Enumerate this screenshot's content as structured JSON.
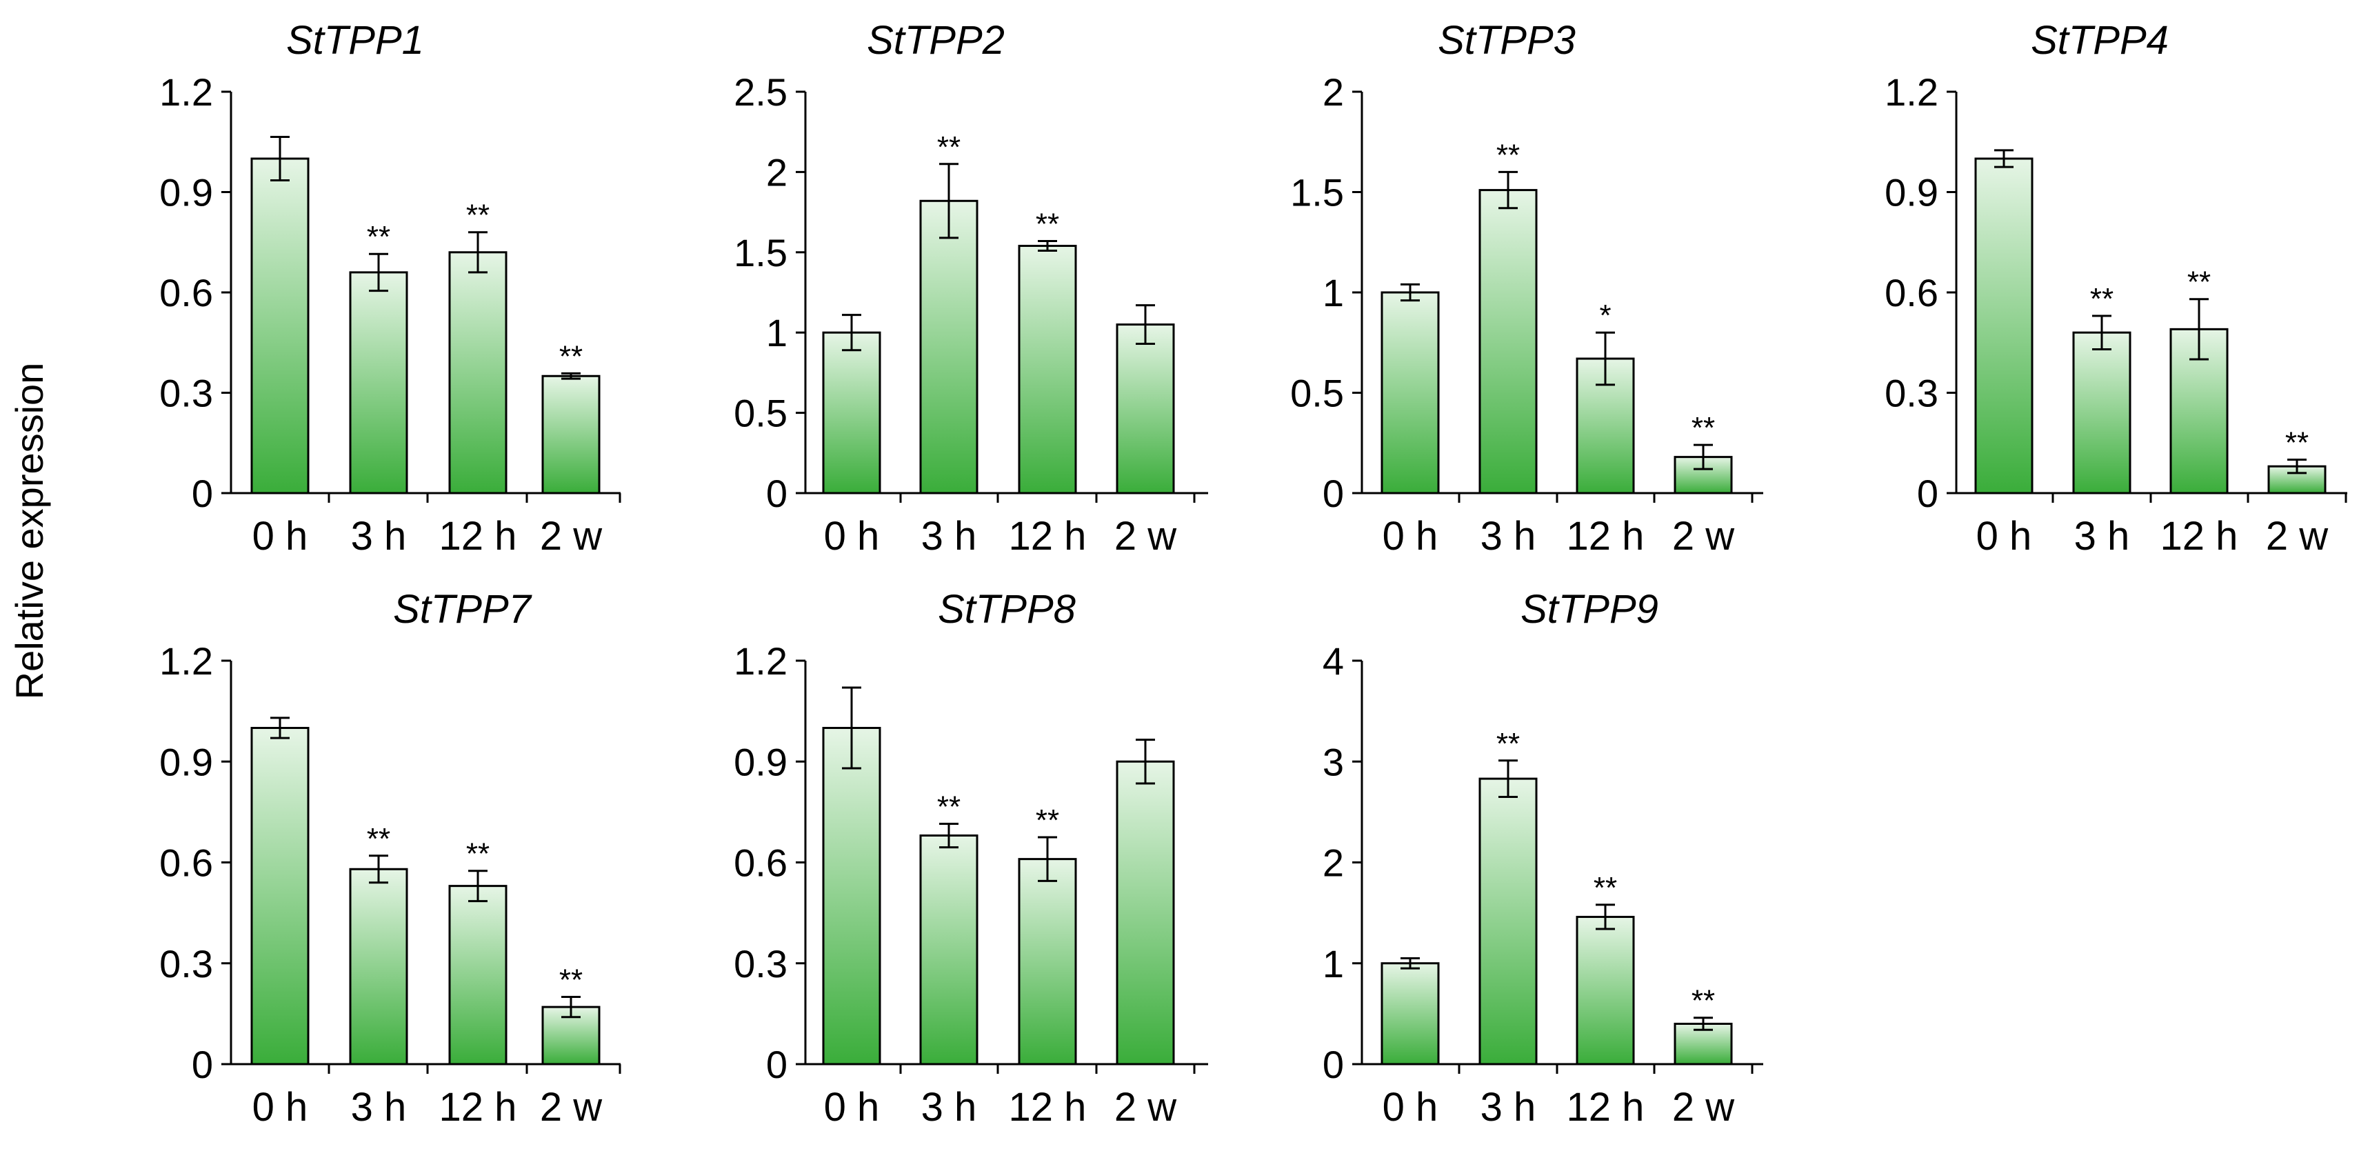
{
  "figure": {
    "ylabel": "Relative expression",
    "bar_gradient": [
      "#e6f5e6",
      "#3aad3a"
    ],
    "axis_color": "#000000"
  },
  "chart_data": [
    {
      "type": "bar",
      "title": "StTPP1",
      "categories": [
        "0 h",
        "3 h",
        "12 h",
        "2 w"
      ],
      "values": [
        1.0,
        0.66,
        0.72,
        0.35
      ],
      "errors": [
        0.065,
        0.055,
        0.06,
        0.008
      ],
      "significance": [
        "",
        "**",
        "**",
        "**"
      ],
      "yticks": [
        "0",
        "0.3",
        "0.6",
        "0.9",
        "1.2"
      ],
      "ylim": [
        0,
        1.2
      ],
      "xlabel": "",
      "ylabel": "Relative expression"
    },
    {
      "type": "bar",
      "title": "StTPP2",
      "categories": [
        "0 h",
        "3 h",
        "12 h",
        "2 w"
      ],
      "values": [
        1.0,
        1.82,
        1.54,
        1.05
      ],
      "errors": [
        0.11,
        0.23,
        0.03,
        0.12
      ],
      "significance": [
        "",
        "**",
        "**",
        ""
      ],
      "yticks": [
        "0",
        "0.5",
        "1",
        "1.5",
        "2",
        "2.5"
      ],
      "ylim": [
        0,
        2.5
      ],
      "xlabel": "",
      "ylabel": "Relative expression"
    },
    {
      "type": "bar",
      "title": "StTPP3",
      "categories": [
        "0 h",
        "3 h",
        "12 h",
        "2 w"
      ],
      "values": [
        1.0,
        1.51,
        0.67,
        0.18
      ],
      "errors": [
        0.04,
        0.09,
        0.13,
        0.06
      ],
      "significance": [
        "",
        "**",
        "*",
        "**"
      ],
      "yticks": [
        "0",
        "0.5",
        "1",
        "1.5",
        "2"
      ],
      "ylim": [
        0,
        2
      ],
      "xlabel": "",
      "ylabel": "Relative expression"
    },
    {
      "type": "bar",
      "title": "StTPP4",
      "categories": [
        "0 h",
        "3 h",
        "12 h",
        "2 w"
      ],
      "values": [
        1.0,
        0.48,
        0.49,
        0.08
      ],
      "errors": [
        0.025,
        0.05,
        0.09,
        0.02
      ],
      "significance": [
        "",
        "**",
        "**",
        "**"
      ],
      "yticks": [
        "0",
        "0.3",
        "0.6",
        "0.9",
        "1.2"
      ],
      "ylim": [
        0,
        1.2
      ],
      "xlabel": "",
      "ylabel": "Relative expression"
    },
    {
      "type": "bar",
      "title": "StTPP7",
      "categories": [
        "0 h",
        "3 h",
        "12 h",
        "2 w"
      ],
      "values": [
        1.0,
        0.58,
        0.53,
        0.17
      ],
      "errors": [
        0.03,
        0.04,
        0.045,
        0.03
      ],
      "significance": [
        "",
        "**",
        "**",
        "**"
      ],
      "yticks": [
        "0",
        "0.3",
        "0.6",
        "0.9",
        "1.2"
      ],
      "ylim": [
        0,
        1.2
      ],
      "xlabel": "",
      "ylabel": "Relative expression"
    },
    {
      "type": "bar",
      "title": "StTPP8",
      "categories": [
        "0 h",
        "3 h",
        "12 h",
        "2 w"
      ],
      "values": [
        1.0,
        0.68,
        0.61,
        0.9
      ],
      "errors": [
        0.12,
        0.035,
        0.065,
        0.065
      ],
      "significance": [
        "",
        "**",
        "**",
        ""
      ],
      "yticks": [
        "0",
        "0.3",
        "0.6",
        "0.9",
        "1.2"
      ],
      "ylim": [
        0,
        1.2
      ],
      "xlabel": "",
      "ylabel": "Relative expression"
    },
    {
      "type": "bar",
      "title": "StTPP9",
      "categories": [
        "0 h",
        "3 h",
        "12 h",
        "2 w"
      ],
      "values": [
        1.0,
        2.83,
        1.46,
        0.4
      ],
      "errors": [
        0.05,
        0.18,
        0.12,
        0.06
      ],
      "significance": [
        "",
        "**",
        "**",
        "**"
      ],
      "yticks": [
        "0",
        "1",
        "2",
        "3",
        "4"
      ],
      "ylim": [
        0,
        4
      ],
      "xlabel": "",
      "ylabel": "Relative expression"
    }
  ]
}
